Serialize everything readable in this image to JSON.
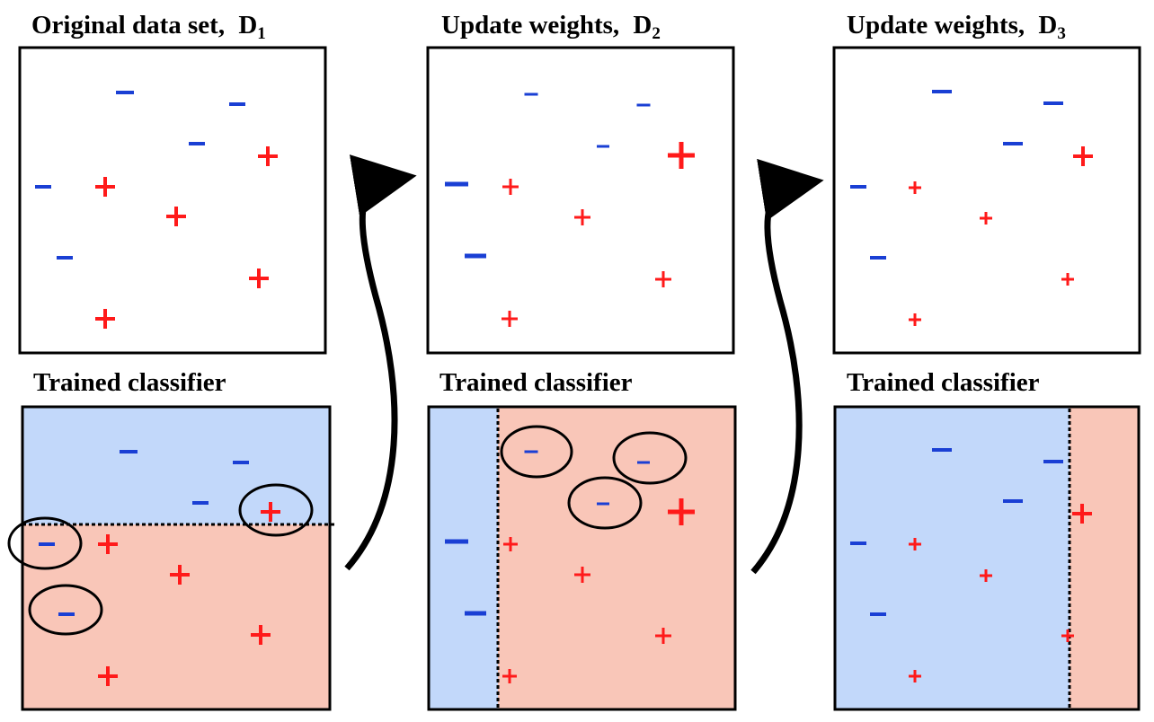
{
  "panels": [
    {
      "id": "d1",
      "title": "Original data set,",
      "symbol": "D",
      "subscript": "1",
      "classifier_label": "Trained classifier"
    },
    {
      "id": "d2",
      "title": "Update weights,",
      "symbol": "D",
      "subscript": "2",
      "classifier_label": "Trained classifier"
    },
    {
      "id": "d3",
      "title": "Update weights,",
      "symbol": "D",
      "subscript": "3",
      "classifier_label": "Trained classifier"
    }
  ],
  "glyphs": {
    "plus": "+",
    "minus": "−"
  },
  "colors": {
    "positive": "#ff1a1a",
    "negative": "#1a3fd4",
    "region_negative": "#c2d8fa",
    "region_positive": "#f9c6b8",
    "frame": "#000000"
  }
}
